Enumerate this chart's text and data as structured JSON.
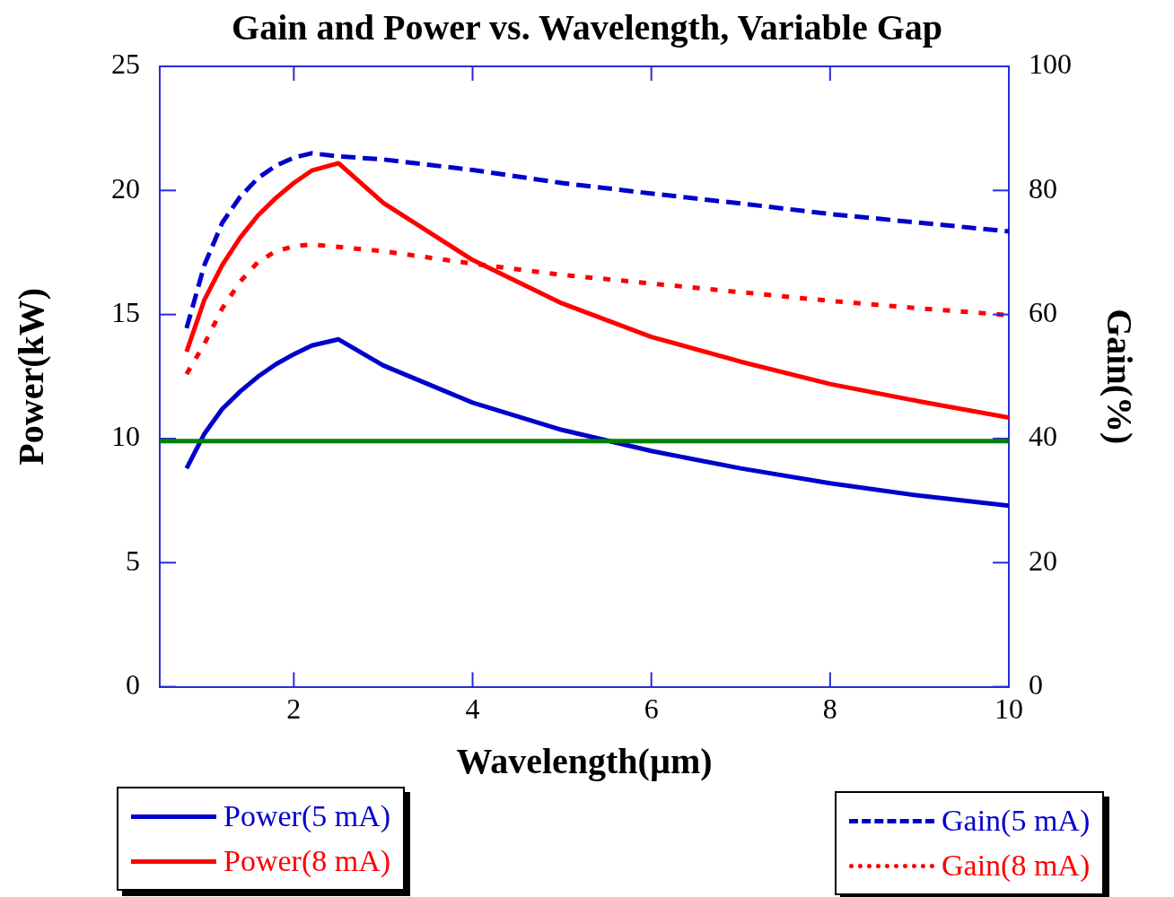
{
  "chart_data": {
    "type": "line",
    "title": "Gain and Power vs. Wavelength, Variable Gap",
    "xlabel": "Wavelength(µm)",
    "ylabel": "Power(kW)",
    "y2label": "Gain(%)",
    "x": [
      0.8,
      1.0,
      1.2,
      1.4,
      1.6,
      1.8,
      2.0,
      2.2,
      2.5,
      3,
      4,
      5,
      6,
      7,
      8,
      9,
      10
    ],
    "xlim": [
      0.5,
      10
    ],
    "xticks": [
      2,
      4,
      6,
      8,
      10
    ],
    "ylim": [
      0,
      25
    ],
    "yticks": [
      0,
      5,
      10,
      15,
      20,
      25
    ],
    "y2lim": [
      0,
      100
    ],
    "y2ticks": [
      0,
      20,
      40,
      60,
      80,
      100
    ],
    "series": [
      {
        "name": "Power(5 mA)",
        "color": "#0000cc",
        "line_style": "solid",
        "values": [
          8.8,
          10.2,
          11.2,
          11.9,
          12.5,
          13.0,
          13.4,
          13.75,
          14.0,
          12.95,
          11.45,
          10.35,
          9.5,
          8.8,
          8.2,
          7.7,
          7.3
        ]
      },
      {
        "name": "Power(8 mA)",
        "color": "#ff0000",
        "line_style": "solid",
        "values": [
          13.5,
          15.6,
          17.0,
          18.1,
          19.0,
          19.7,
          20.3,
          20.8,
          21.1,
          19.5,
          17.2,
          15.45,
          14.1,
          13.1,
          12.2,
          11.5,
          10.85
        ]
      },
      {
        "name": "Gain(5 mA)",
        "color": "#0000cc",
        "line_style": "dashed",
        "axis": "y2",
        "values": [
          57.8,
          68,
          74.8,
          79,
          82,
          84,
          85.3,
          86,
          85.5,
          85,
          83.3,
          81.2,
          79.5,
          77.9,
          76.2,
          74.8,
          73.4
        ]
      },
      {
        "name": "Gain(8 mA)",
        "color": "#ff0000",
        "line_style": "dotted",
        "axis": "y2",
        "values": [
          50.4,
          55.3,
          61,
          65.3,
          68.5,
          70.2,
          71,
          71.3,
          70.9,
          70.2,
          68.2,
          66.4,
          65,
          63.6,
          62.2,
          61,
          59.9
        ]
      }
    ],
    "ref_lines": [
      {
        "axis": "y",
        "value": 9.9,
        "color": "#008000",
        "line_style": "solid"
      }
    ],
    "legend": "bottom",
    "marker": "none"
  }
}
